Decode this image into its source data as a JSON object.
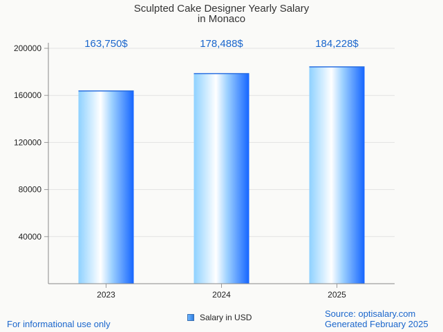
{
  "title_line1": "Sculpted Cake Designer Yearly Salary",
  "title_line2": "in Monaco",
  "footer": {
    "left": "For informational use only",
    "source": "Source: optisalary.com",
    "generated": "Generated February 2025"
  },
  "legend_label": "Salary in USD",
  "colors": {
    "accent": "#1a66cc",
    "bar_light": "#ffffff",
    "bar_mid": "#8ed1ff",
    "bar_dark": "#1565ff"
  },
  "chart_data": {
    "type": "bar",
    "title": "Sculpted Cake Designer Yearly Salary in Monaco",
    "categories": [
      "2023",
      "2024",
      "2025"
    ],
    "series": [
      {
        "name": "Salary in USD",
        "values": [
          163750,
          178488,
          184228
        ]
      }
    ],
    "data_labels": [
      "163,750$",
      "178,488$",
      "184,228$"
    ],
    "y_ticks": [
      40000,
      80000,
      120000,
      160000,
      200000
    ],
    "ylim": [
      0,
      200000
    ],
    "grid": true,
    "legend_position": "bottom"
  }
}
